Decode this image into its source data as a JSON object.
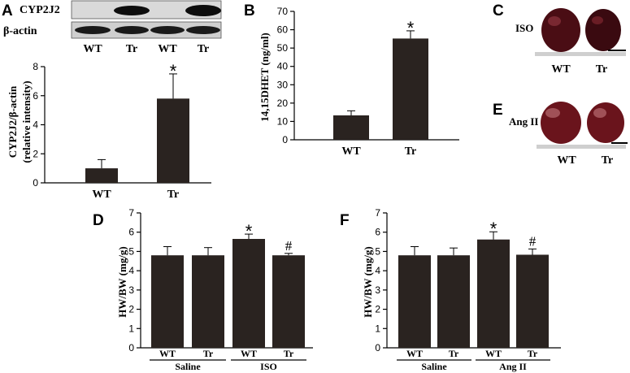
{
  "panels": {
    "A": {
      "letter": "A",
      "blot": {
        "rows": [
          "CYP2J2",
          "β-actin"
        ],
        "lanes": [
          "WT",
          "Tr",
          "WT",
          "Tr"
        ]
      },
      "chart_data": {
        "type": "bar",
        "categories": [
          "WT",
          "Tr"
        ],
        "values": [
          1.0,
          5.8
        ],
        "errors": [
          0.6,
          1.7
        ],
        "significance": [
          "",
          "*"
        ],
        "ylabel_line1": "CYP2J2/β-actin",
        "ylabel_line2": "(relative intensity)",
        "ylim": [
          0,
          8
        ],
        "yticks": [
          0,
          2,
          4,
          6,
          8
        ]
      }
    },
    "B": {
      "letter": "B",
      "chart_data": {
        "type": "bar",
        "categories": [
          "WT",
          "Tr"
        ],
        "values": [
          13.3,
          55.2
        ],
        "errors": [
          2.5,
          4.2
        ],
        "significance": [
          "",
          "*"
        ],
        "ylabel": "14,15DHET (ng/ml)",
        "ylim": [
          0,
          70
        ],
        "yticks": [
          0,
          10,
          20,
          30,
          40,
          50,
          60,
          70
        ]
      }
    },
    "C": {
      "letter": "C",
      "condition": "ISO",
      "labels": [
        "WT",
        "Tr"
      ]
    },
    "E": {
      "letter": "E",
      "condition": "Ang II",
      "labels": [
        "WT",
        "Tr"
      ]
    },
    "D": {
      "letter": "D",
      "chart_data": {
        "type": "bar",
        "categories": [
          "WT",
          "Tr",
          "WT",
          "Tr"
        ],
        "values": [
          4.8,
          4.8,
          5.65,
          4.8
        ],
        "errors": [
          0.45,
          0.4,
          0.25,
          0.1
        ],
        "significance": [
          "",
          "",
          "*",
          "#"
        ],
        "groups": [
          "Saline",
          "ISO"
        ],
        "ylabel": "HW/BW (mg/g)",
        "ylim": [
          0,
          7
        ],
        "yticks": [
          0,
          1,
          2,
          3,
          4,
          5,
          6,
          7
        ]
      }
    },
    "F": {
      "letter": "F",
      "chart_data": {
        "type": "bar",
        "categories": [
          "WT",
          "Tr",
          "WT",
          "Tr"
        ],
        "values": [
          4.8,
          4.8,
          5.62,
          4.83
        ],
        "errors": [
          0.45,
          0.38,
          0.4,
          0.3
        ],
        "significance": [
          "",
          "",
          "*",
          "#"
        ],
        "groups": [
          "Saline",
          "Ang II"
        ],
        "ylabel": "HW/BW (mg/g)",
        "ylim": [
          0,
          7
        ],
        "yticks": [
          0,
          1,
          2,
          3,
          4,
          5,
          6,
          7
        ]
      }
    }
  },
  "colors": {
    "bar": "#2a2320",
    "ink": "#000000",
    "heart_dark": "#3a0a10",
    "heart_mid": "#7a1a22",
    "ruler": "#cfcfcf"
  }
}
